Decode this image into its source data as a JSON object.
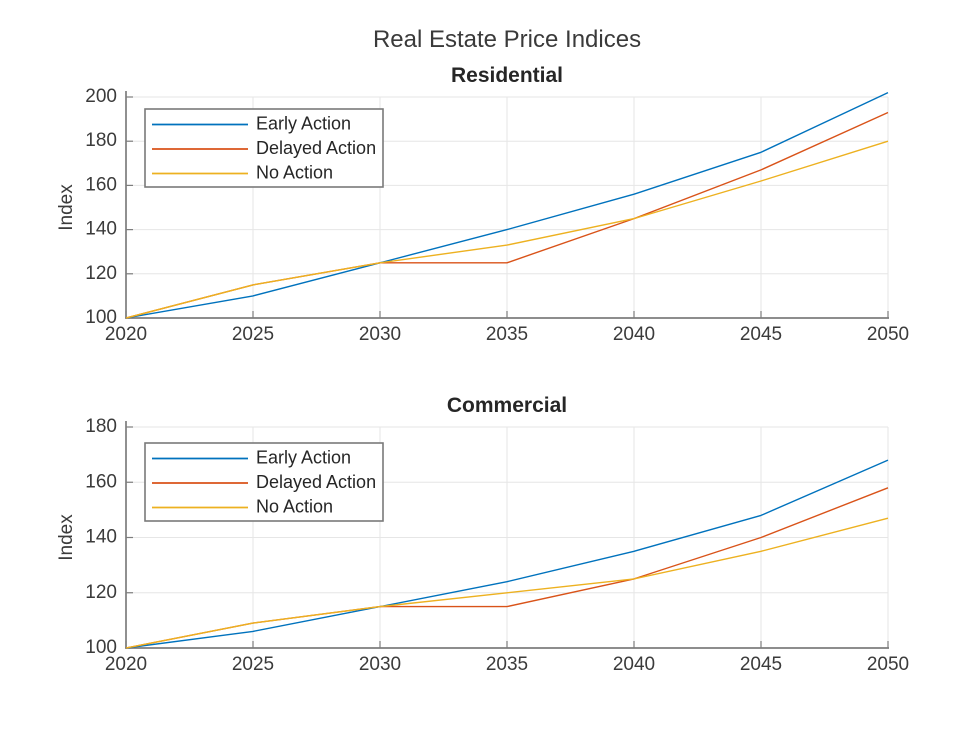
{
  "figure_title": "Real Estate Price Indices",
  "colors": {
    "early_action": "#0072BD",
    "delayed_action": "#D95319",
    "no_action": "#EDB120",
    "grid": "#e6e6e6",
    "axis": "#7d7d7d",
    "tick_text": "#3b3b3b",
    "title_text": "#262626",
    "legend_border": "#7a7a7a",
    "legend_fill": "#ffffff"
  },
  "chart_data": [
    {
      "type": "line",
      "title": "Residential",
      "xlabel": "",
      "ylabel": "Index",
      "x": [
        2020,
        2025,
        2030,
        2035,
        2040,
        2045,
        2050
      ],
      "xticks": [
        2020,
        2025,
        2030,
        2035,
        2040,
        2045,
        2050
      ],
      "yticks": [
        100,
        120,
        140,
        160,
        180,
        200
      ],
      "xlim": [
        2020,
        2050
      ],
      "ylim": [
        100,
        205
      ],
      "grid": true,
      "legend_position": "upper-left",
      "series": [
        {
          "name": "Early Action",
          "color": "#0072BD",
          "values": [
            100,
            110,
            125,
            140,
            156,
            175,
            202
          ]
        },
        {
          "name": "Delayed Action",
          "color": "#D95319",
          "values": [
            100,
            115,
            125,
            125,
            145,
            167,
            193
          ]
        },
        {
          "name": "No Action",
          "color": "#EDB120",
          "values": [
            100,
            115,
            125,
            133,
            145,
            162,
            180
          ]
        }
      ]
    },
    {
      "type": "line",
      "title": "Commercial",
      "xlabel": "",
      "ylabel": "Index",
      "x": [
        2020,
        2025,
        2030,
        2035,
        2040,
        2045,
        2050
      ],
      "xticks": [
        2020,
        2025,
        2030,
        2035,
        2040,
        2045,
        2050
      ],
      "yticks": [
        100,
        120,
        140,
        160,
        180
      ],
      "xlim": [
        2020,
        2050
      ],
      "ylim": [
        100,
        180
      ],
      "grid": true,
      "legend_position": "upper-left",
      "series": [
        {
          "name": "Early Action",
          "color": "#0072BD",
          "values": [
            100,
            106,
            115,
            124,
            135,
            148,
            168
          ]
        },
        {
          "name": "Delayed Action",
          "color": "#D95319",
          "values": [
            100,
            109,
            115,
            115,
            125,
            140,
            158
          ]
        },
        {
          "name": "No Action",
          "color": "#EDB120",
          "values": [
            100,
            109,
            115,
            120,
            125,
            135,
            147
          ]
        }
      ]
    }
  ]
}
